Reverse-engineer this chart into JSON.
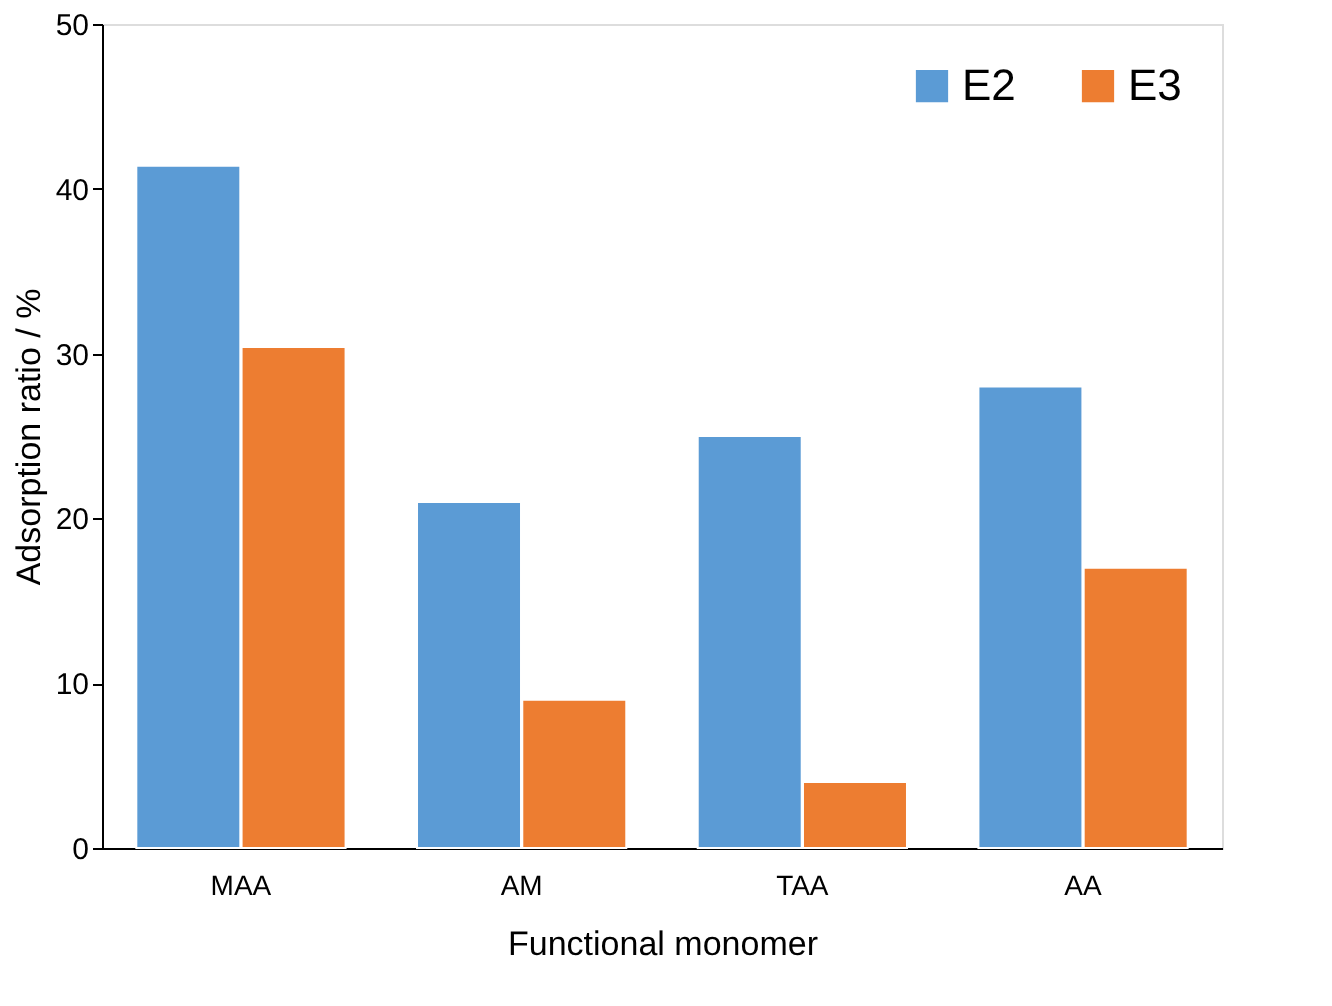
{
  "chart_data": {
    "type": "bar",
    "xlabel": "Functional monomer",
    "ylabel": "Adsorption ratio / %",
    "categories": [
      "MAA",
      "AM",
      "TAA",
      "AA"
    ],
    "series": [
      {
        "name": "E2",
        "color": "#5b9bd5",
        "values": [
          41.4,
          21,
          25,
          28
        ]
      },
      {
        "name": "E3",
        "color": "#ed7d31",
        "values": [
          30.4,
          9,
          4,
          17
        ]
      }
    ],
    "ylim": [
      0,
      50
    ],
    "yticks": [
      0,
      10,
      20,
      30,
      40,
      50
    ],
    "grid": false,
    "legend": "top right"
  }
}
